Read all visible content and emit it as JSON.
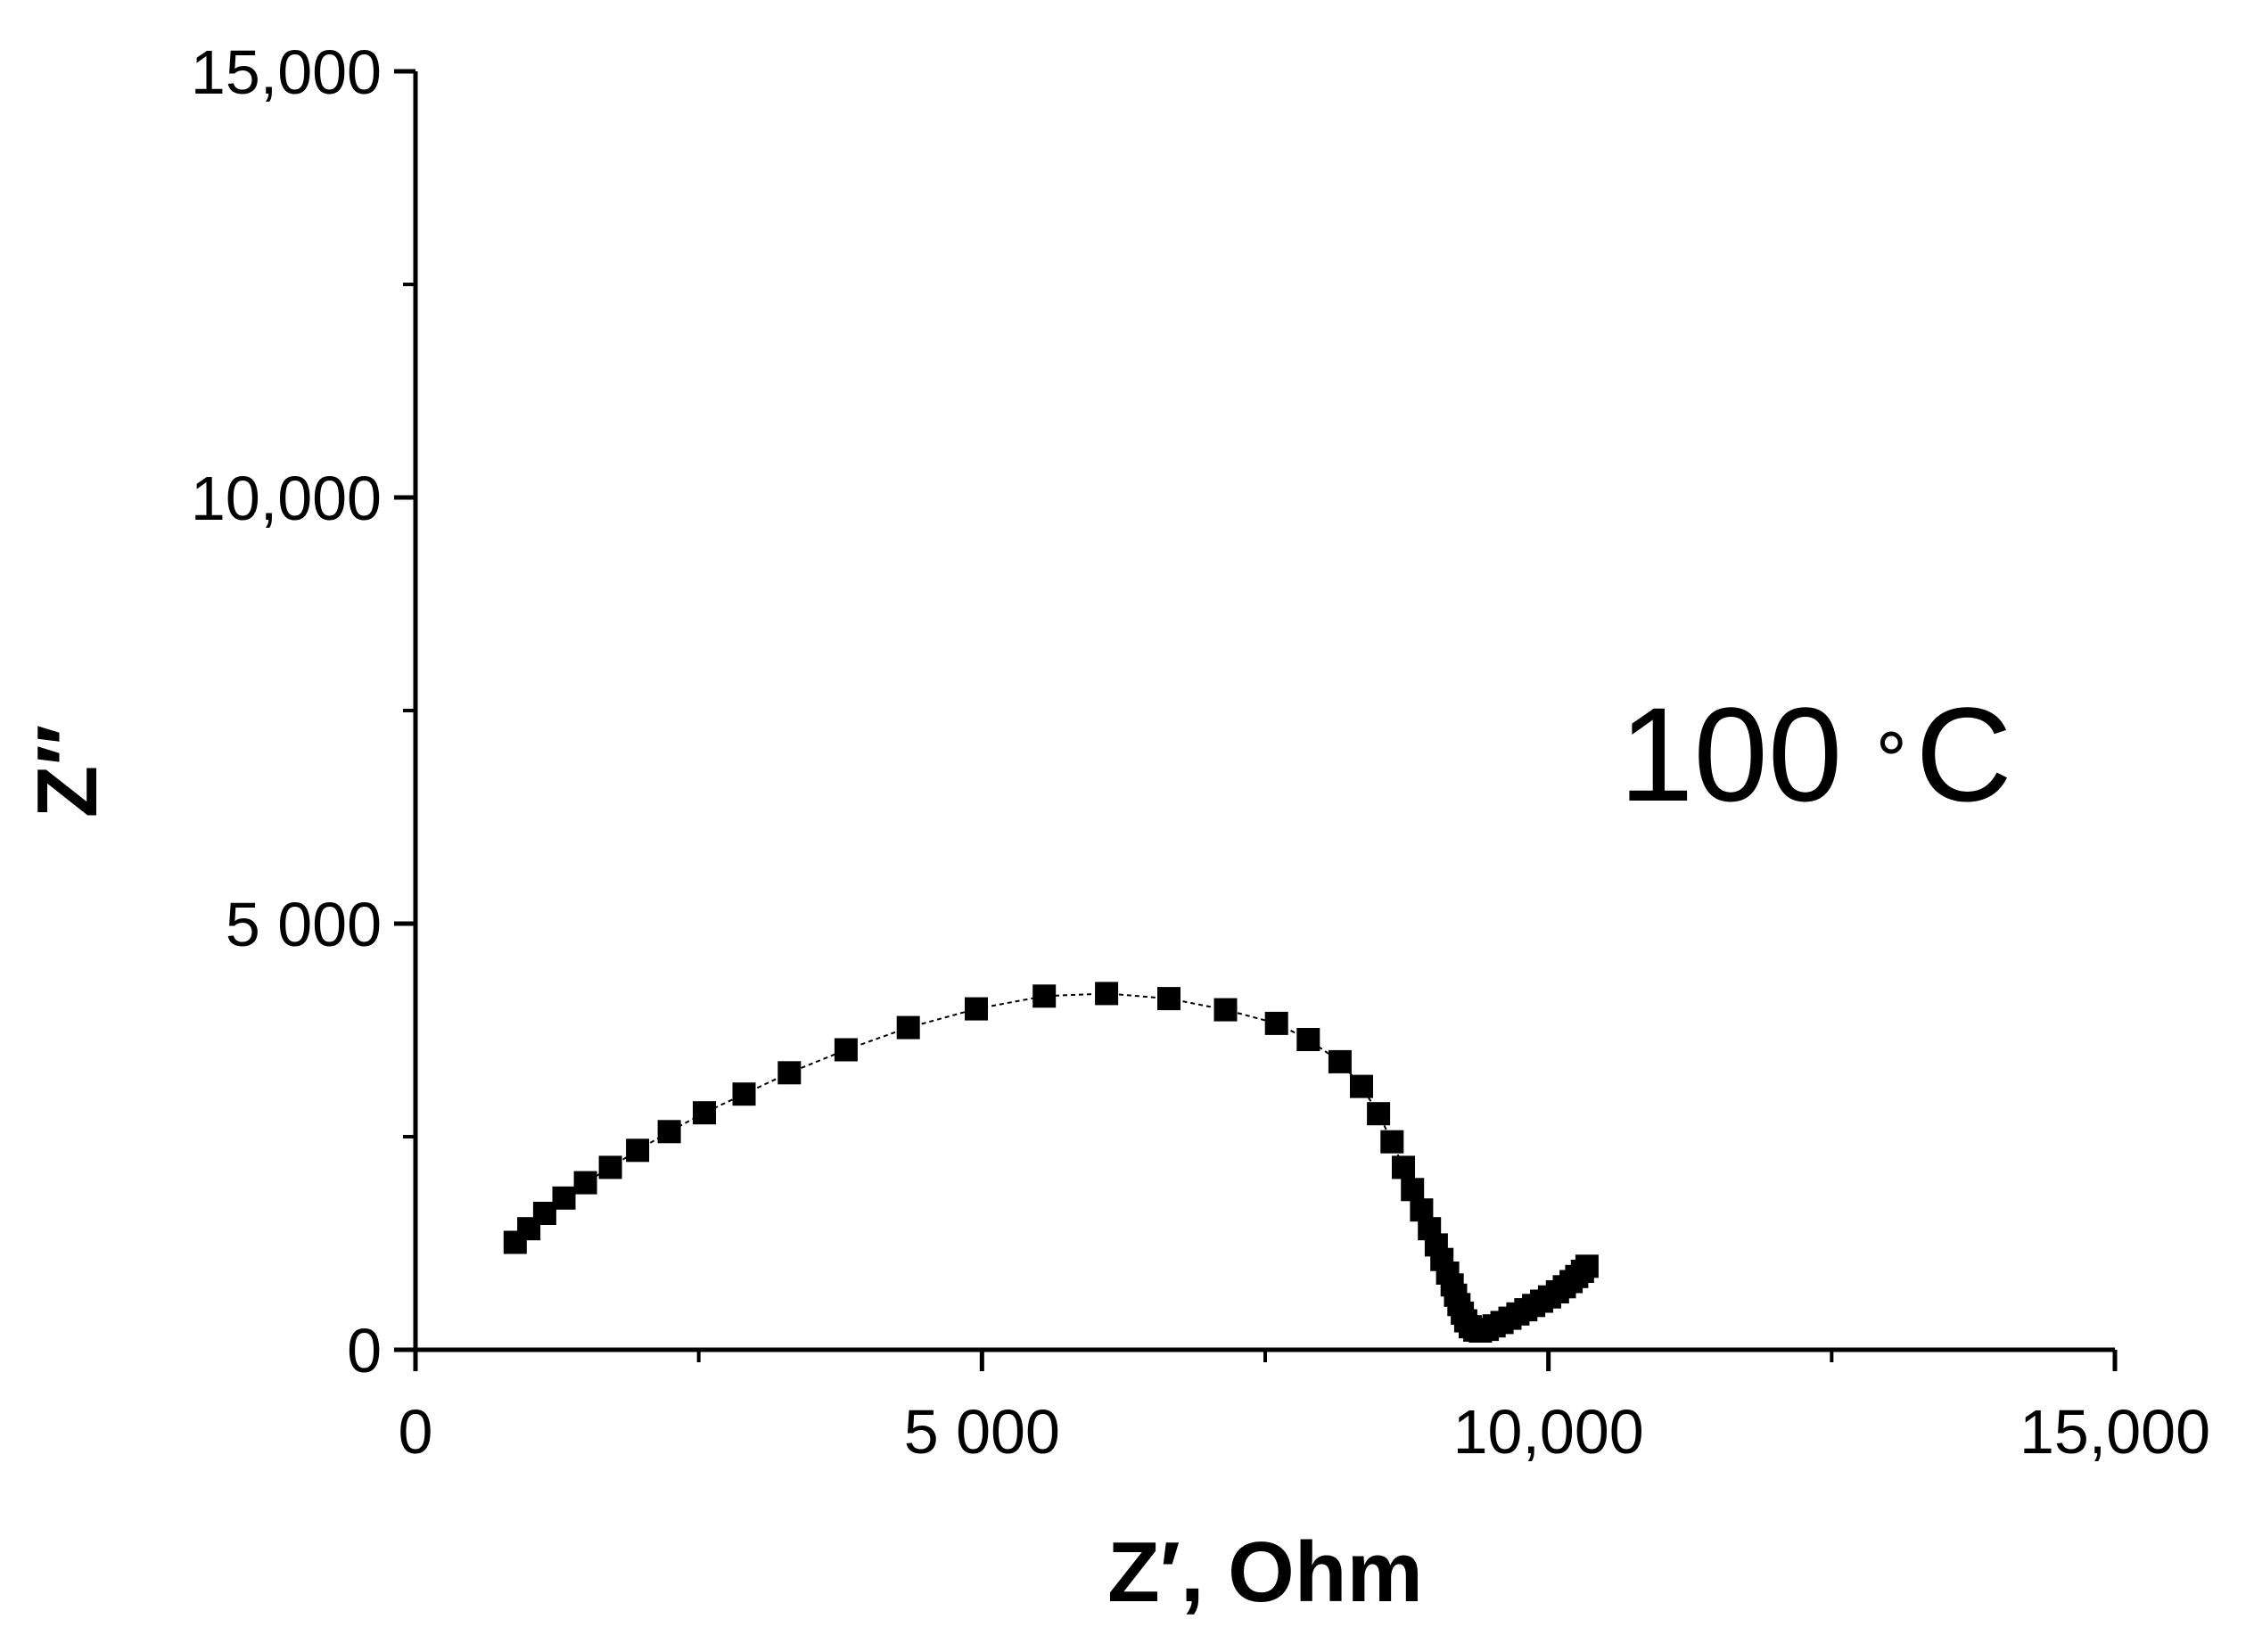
{
  "chart_data": {
    "type": "scatter",
    "title": "",
    "xlabel": "Z′, Ohm",
    "ylabel": "Z″",
    "annotation": {
      "number": "100",
      "degree": "∘",
      "unit": "C"
    },
    "xlim": [
      0,
      15000
    ],
    "ylim": [
      0,
      15000
    ],
    "x_ticks": [
      {
        "value": 0,
        "label": "0"
      },
      {
        "value": 5000,
        "label": "5 000"
      },
      {
        "value": 10000,
        "label": "10,000"
      },
      {
        "value": 15000,
        "label": "15,000"
      }
    ],
    "y_ticks": [
      {
        "value": 0,
        "label": "0"
      },
      {
        "value": 5000,
        "label": "5 000"
      },
      {
        "value": 10000,
        "label": "10,000"
      },
      {
        "value": 15000,
        "label": "15,000"
      }
    ],
    "x_minor_ticks": [
      2500,
      7500,
      12500
    ],
    "y_minor_ticks": [
      2500,
      7500,
      12500
    ],
    "grid": false,
    "marker": "square",
    "color": "#000000",
    "series": [
      {
        "x": [
          880,
          1000,
          1140,
          1310,
          1500,
          1720,
          1960,
          2240,
          2550,
          2900,
          3300,
          3800,
          4350,
          4950,
          5550,
          6100,
          6650,
          7150,
          7600,
          7880,
          8160,
          8350,
          8500,
          8620,
          8720,
          8800,
          8880,
          8950,
          9010,
          9060,
          9110,
          9150,
          9180,
          9210,
          9240,
          9270,
          9310,
          9350,
          9400,
          9460,
          9520,
          9590,
          9660,
          9730,
          9800,
          9870,
          9940,
          10010,
          10080,
          10140,
          10200,
          10250,
          10300,
          10340
        ],
        "y": [
          1260,
          1420,
          1600,
          1780,
          1960,
          2140,
          2340,
          2560,
          2780,
          3000,
          3250,
          3520,
          3780,
          4000,
          4150,
          4180,
          4120,
          3990,
          3830,
          3640,
          3380,
          3090,
          2770,
          2440,
          2140,
          1880,
          1640,
          1420,
          1230,
          1060,
          900,
          760,
          640,
          530,
          430,
          340,
          270,
          230,
          220,
          240,
          280,
          320,
          370,
          420,
          470,
          520,
          570,
          620,
          680,
          740,
          800,
          860,
          920,
          980
        ]
      }
    ]
  }
}
